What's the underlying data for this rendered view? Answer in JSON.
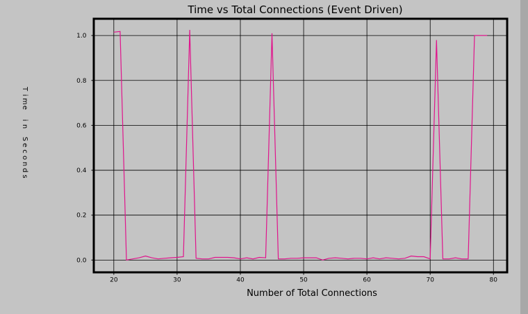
{
  "chart_data": {
    "type": "line",
    "title": "Time vs Total Connections (Event Driven)",
    "xlabel": "Number of Total Connections",
    "ylabel": "Time in Seconds",
    "xlim": [
      17,
      82
    ],
    "ylim": [
      -0.05,
      1.07
    ],
    "xticks": [
      20,
      30,
      40,
      50,
      60,
      70,
      80
    ],
    "yticks": [
      0.0,
      0.2,
      0.4,
      0.6,
      0.8,
      1.0
    ],
    "ytick_labels": [
      "0.0",
      "0.2",
      "0.4",
      "0.6",
      "0.8",
      "1.0"
    ],
    "grid": true,
    "legend": "none",
    "series": [
      {
        "color": "#e0148c",
        "x": [
          20,
          21,
          22,
          23,
          24,
          25,
          26,
          27,
          28,
          29,
          30,
          31,
          32,
          33,
          34,
          35,
          36,
          37,
          38,
          39,
          40,
          41,
          42,
          43,
          44,
          45,
          46,
          47,
          48,
          49,
          50,
          51,
          52,
          53,
          54,
          55,
          56,
          57,
          58,
          59,
          60,
          61,
          62,
          63,
          64,
          65,
          66,
          67,
          68,
          69,
          70,
          71,
          72,
          73,
          74,
          75,
          76,
          77,
          78,
          79
        ],
        "values": [
          1.015,
          1.018,
          0.0,
          0.005,
          0.01,
          0.018,
          0.01,
          0.005,
          0.008,
          0.01,
          0.012,
          0.015,
          1.025,
          0.008,
          0.005,
          0.005,
          0.012,
          0.012,
          0.012,
          0.01,
          0.005,
          0.01,
          0.005,
          0.012,
          0.01,
          1.01,
          0.005,
          0.005,
          0.008,
          0.008,
          0.01,
          0.01,
          0.01,
          0.0,
          0.008,
          0.01,
          0.008,
          0.005,
          0.008,
          0.008,
          0.005,
          0.01,
          0.005,
          0.01,
          0.008,
          0.005,
          0.008,
          0.018,
          0.015,
          0.015,
          0.005,
          0.98,
          0.005,
          0.005,
          0.01,
          0.005,
          0.005,
          1.0,
          1.0,
          1.0
        ]
      }
    ]
  }
}
